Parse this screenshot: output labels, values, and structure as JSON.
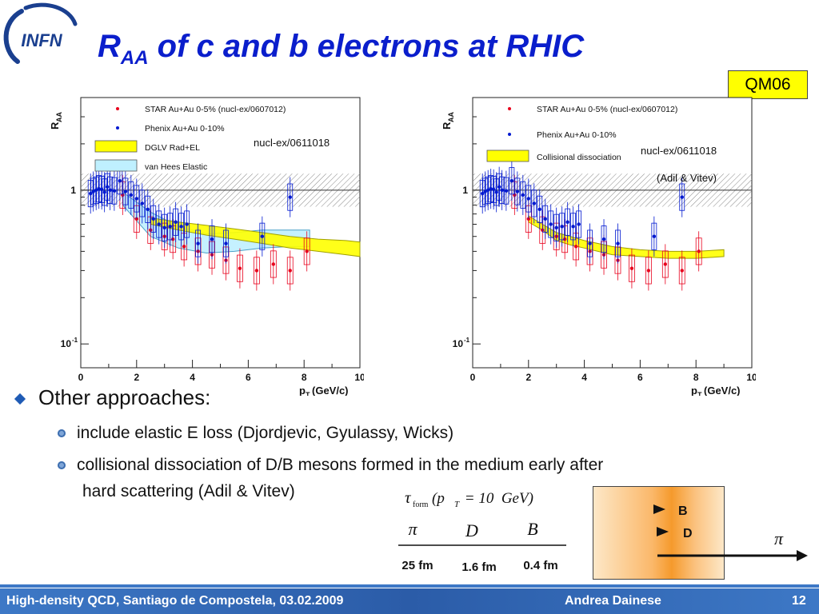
{
  "logo": {
    "text": "INFN"
  },
  "slide": {
    "title_main": "R",
    "title_sub": "AA",
    "title_rest": " of c and b electrons at RHIC",
    "badge": "QM06",
    "page_number": "12"
  },
  "bullets": {
    "level1": "Other approaches:",
    "item1": "include elastic E loss (Djordjevic, Gyulassy, Wicks)",
    "item2_line1": "collisional dissociation of D/B mesons formed in the medium early after",
    "item2_line2": "hard scattering (Adil & Vitev)"
  },
  "formation_table": {
    "header_tau": "τ",
    "header_sub": "form",
    "header_args": "(p",
    "header_T": "T",
    "header_eq": " = 10  GeV)",
    "columns": [
      "π",
      "D",
      "B"
    ],
    "values": [
      "25 fm",
      "1.6 fm",
      "0.4 fm"
    ]
  },
  "diagram": {
    "label_b": "B",
    "label_d": "D",
    "label_pi": "π"
  },
  "footer": {
    "left": "High-density QCD, Santiago de Compostela, 03.02.2009",
    "center": "Andrea Dainese"
  },
  "colors": {
    "title": "#0a1ecc",
    "star": "#e8001c",
    "phenix": "#0018d0",
    "dglv": "#ffff00",
    "vanhees": "#bff0ff",
    "footer": "#2b5ca8"
  },
  "chart_data": [
    {
      "type": "scatter",
      "annotation": "nucl-ex/0611018",
      "annotation2": "",
      "xlabel": "p",
      "xlabel_sub": "T",
      "xlabel_unit": " (GeV/c)",
      "ylabel": "R",
      "ylabel_sub": "AA",
      "xlim": [
        0,
        10
      ],
      "ylim_log": [
        0.07,
        4
      ],
      "log_y": true,
      "xticks": [
        0,
        2,
        4,
        6,
        8,
        10
      ],
      "ytick_labels": [
        "1",
        "10"
      ],
      "ytick_exp": "-1",
      "band_norm": [
        0.78,
        1.28
      ],
      "legend": [
        {
          "label": "STAR Au+Au 0-5% (nucl-ex/0607012)",
          "kind": "point",
          "color": "#e8001c"
        },
        {
          "label": "Phenix Au+Au  0-10%",
          "kind": "point",
          "color": "#0018d0"
        },
        {
          "label": "DGLV Rad+EL",
          "kind": "box",
          "color": "#ffff00"
        },
        {
          "label": "van Hees Elastic",
          "kind": "box",
          "color": "#bff0ff"
        }
      ],
      "series": [
        {
          "name": "STAR Au+Au 0-5% (nucl-ex/0607012)",
          "color": "#e8001c",
          "x": [
            1.5,
            2.0,
            2.5,
            3.0,
            3.3,
            3.7,
            4.2,
            4.7,
            5.2,
            5.7,
            6.3,
            6.9,
            7.5,
            8.1
          ],
          "y": [
            0.93,
            0.65,
            0.55,
            0.5,
            0.48,
            0.43,
            0.4,
            0.38,
            0.35,
            0.31,
            0.3,
            0.33,
            0.3,
            0.4
          ]
        },
        {
          "name": "Phenix Au+Au  0-10%",
          "color": "#0018d0",
          "x": [
            0.35,
            0.45,
            0.55,
            0.65,
            0.75,
            0.85,
            0.95,
            1.05,
            1.2,
            1.4,
            1.6,
            1.8,
            2.0,
            2.2,
            2.4,
            2.6,
            2.8,
            3.0,
            3.2,
            3.4,
            3.6,
            3.8,
            4.2,
            4.7,
            5.2,
            6.5,
            7.5
          ],
          "y": [
            0.95,
            0.98,
            1.0,
            1.02,
            1.01,
            0.97,
            1.05,
            1.0,
            0.99,
            1.15,
            0.98,
            0.93,
            0.88,
            0.82,
            0.75,
            0.65,
            0.6,
            0.57,
            0.58,
            0.62,
            0.58,
            0.6,
            0.45,
            0.48,
            0.45,
            0.5,
            0.9
          ]
        }
      ],
      "bands": [
        {
          "name": "van Hees Elastic",
          "color": "#bff0ff",
          "stroke": "#4aa0c8",
          "x": [
            1.5,
            2.5,
            3.5,
            4.5,
            5.5,
            6.5,
            7.5,
            8.2
          ],
          "upper": [
            0.97,
            0.72,
            0.58,
            0.52,
            0.53,
            0.55,
            0.55,
            0.55
          ],
          "lower": [
            0.8,
            0.5,
            0.42,
            0.39,
            0.4,
            0.42,
            0.43,
            0.43
          ]
        },
        {
          "name": "DGLV Rad+EL",
          "color": "#ffff00",
          "stroke": "#a0a000",
          "x": [
            2.5,
            3.5,
            4.5,
            5.5,
            6.5,
            7.5,
            8.5,
            9.5,
            10.0
          ],
          "upper": [
            0.66,
            0.62,
            0.59,
            0.56,
            0.53,
            0.5,
            0.48,
            0.47,
            0.46
          ],
          "lower": [
            0.6,
            0.55,
            0.51,
            0.48,
            0.45,
            0.42,
            0.4,
            0.38,
            0.37
          ]
        }
      ]
    },
    {
      "type": "scatter",
      "annotation": "nucl-ex/0611018",
      "annotation2": "(Adil & Vitev)",
      "xlabel": "p",
      "xlabel_sub": "T",
      "xlabel_unit": " (GeV/c)",
      "ylabel": "R",
      "ylabel_sub": "AA",
      "xlim": [
        0,
        10
      ],
      "ylim_log": [
        0.07,
        4
      ],
      "log_y": true,
      "xticks": [
        0,
        2,
        4,
        6,
        8,
        10
      ],
      "ytick_labels": [
        "1",
        "10"
      ],
      "ytick_exp": "-1",
      "band_norm": [
        0.78,
        1.28
      ],
      "legend": [
        {
          "label": "STAR Au+Au 0-5% (nucl-ex/0607012)",
          "kind": "point",
          "color": "#e8001c"
        },
        {
          "label": "Phenix Au+Au  0-10%",
          "kind": "point",
          "color": "#0018d0"
        },
        {
          "label": "Collisional dissociation",
          "kind": "box",
          "color": "#ffff00"
        }
      ],
      "series": [
        {
          "name": "STAR Au+Au 0-5% (nucl-ex/0607012)",
          "color": "#e8001c",
          "x": [
            1.5,
            2.0,
            2.5,
            3.0,
            3.3,
            3.7,
            4.2,
            4.7,
            5.2,
            5.7,
            6.3,
            6.9,
            7.5,
            8.1
          ],
          "y": [
            0.93,
            0.65,
            0.55,
            0.5,
            0.48,
            0.43,
            0.4,
            0.38,
            0.35,
            0.31,
            0.3,
            0.33,
            0.3,
            0.4
          ]
        },
        {
          "name": "Phenix Au+Au  0-10%",
          "color": "#0018d0",
          "x": [
            0.35,
            0.45,
            0.55,
            0.65,
            0.75,
            0.85,
            0.95,
            1.05,
            1.2,
            1.4,
            1.6,
            1.8,
            2.0,
            2.2,
            2.4,
            2.6,
            2.8,
            3.0,
            3.2,
            3.4,
            3.6,
            3.8,
            4.2,
            4.7,
            5.2,
            6.5,
            7.5
          ],
          "y": [
            0.95,
            0.98,
            1.0,
            1.02,
            1.01,
            0.97,
            1.05,
            1.0,
            0.99,
            1.15,
            0.98,
            0.93,
            0.88,
            0.82,
            0.75,
            0.65,
            0.6,
            0.57,
            0.58,
            0.62,
            0.58,
            0.6,
            0.45,
            0.48,
            0.45,
            0.5,
            0.9
          ]
        }
      ],
      "bands": [
        {
          "name": "Collisional dissociation",
          "color": "#ffff00",
          "stroke": "#a0a000",
          "x": [
            2.0,
            2.5,
            3.0,
            3.5,
            4.0,
            5.0,
            6.0,
            7.0,
            8.0,
            9.0
          ],
          "upper": [
            0.68,
            0.6,
            0.53,
            0.5,
            0.47,
            0.43,
            0.41,
            0.4,
            0.4,
            0.41
          ],
          "lower": [
            0.62,
            0.55,
            0.47,
            0.44,
            0.42,
            0.38,
            0.37,
            0.36,
            0.36,
            0.37
          ]
        }
      ]
    }
  ]
}
